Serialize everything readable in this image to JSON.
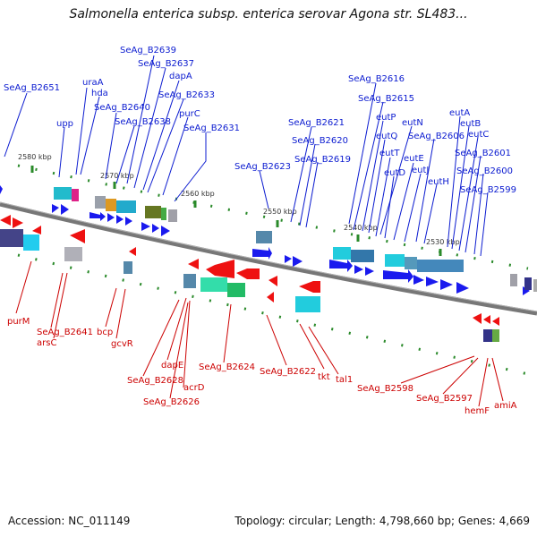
{
  "title": "Salmonella enterica subsp. enterica serovar Agona str. SL483...",
  "accession": "Accession: NC_011149",
  "topology": "Topology: circular; Length: 4,798,660 bp; Genes: 4,669",
  "colors": {
    "backbone": "#777777",
    "forward_label": "#0b1bd0",
    "reverse_label": "#cc0000",
    "forward_arrow": "#1a1aee",
    "reverse_arrow": "#ee1111",
    "tick": "#2a8a2a",
    "tick_label": "#333333"
  },
  "ticks": [
    "2580 kbp",
    "2570 kbp",
    "2560 kbp",
    "2550 kbp",
    "2540 kbp",
    "2530 kbp"
  ],
  "forward_labels": [
    "SeAg_B2651",
    "uraA",
    "hda",
    "upp",
    "SeAg_B2640",
    "SeAg_B2639",
    "SeAg_B2637",
    "dapA",
    "SeAg_B2633",
    "SeAg_B2638",
    "purC",
    "SeAg_B2631",
    "SeAg_B2623",
    "SeAg_B2621",
    "SeAg_B2620",
    "SeAg_B2619",
    "SeAg_B2616",
    "SeAg_B2615",
    "eutP",
    "eutQ",
    "eutN",
    "eutT",
    "eutD",
    "eutE",
    "eutJ",
    "eutH",
    "SeAg_B2606",
    "eutA",
    "eutB",
    "eutC",
    "SeAg_B2601",
    "SeAg_B2600",
    "SeAg_B2599"
  ],
  "reverse_labels": [
    "purM",
    "SeAg_B2641",
    "arsC",
    "bcp",
    "gcvR",
    "dapE",
    "SeAg_B2628",
    "acrD",
    "SeAg_B2626",
    "SeAg_B2624",
    "SeAg_B2622",
    "tkt",
    "tal1",
    "SeAg_B2598",
    "SeAg_B2597",
    "hemF",
    "amiA"
  ]
}
